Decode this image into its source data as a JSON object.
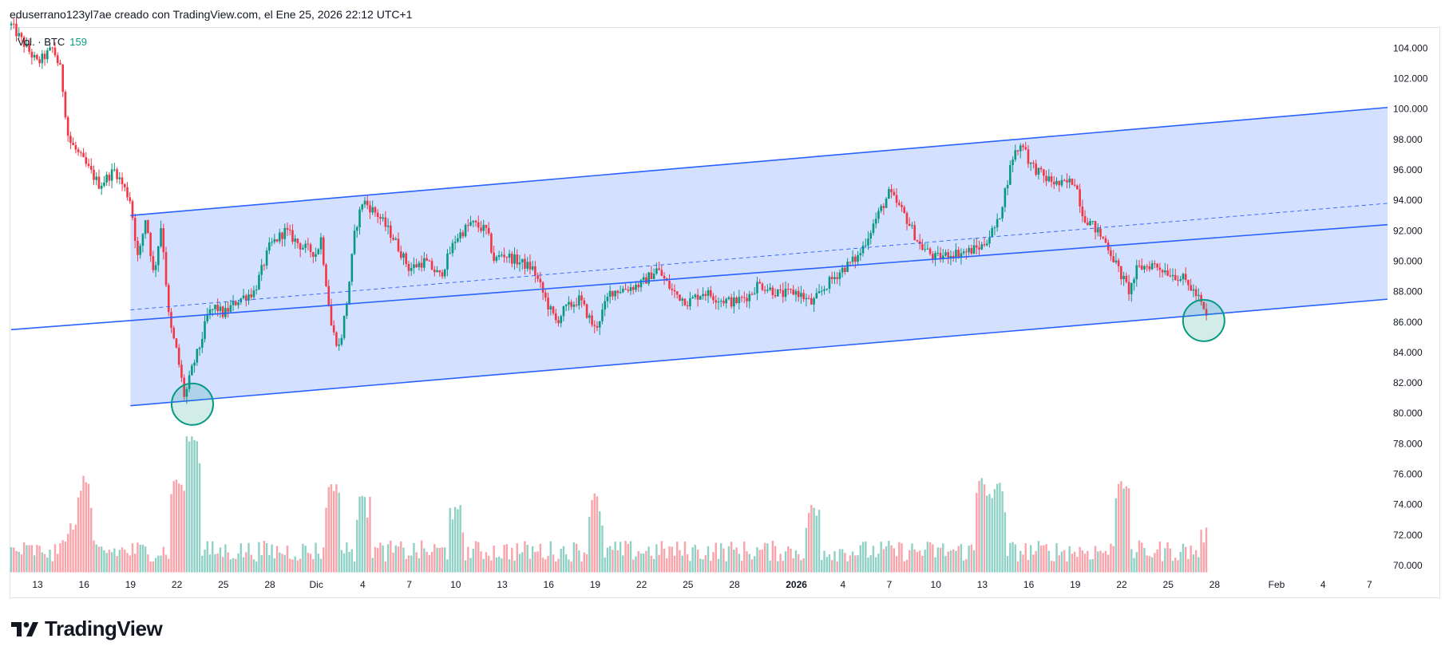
{
  "header": {
    "text": "eduserrano123yl7ae creado con TradingView.com, el Ene 25, 2026 22:12 UTC+1"
  },
  "legend": {
    "label": "Vol. · BTC",
    "value": "159"
  },
  "footer": {
    "logo_text": "TradingView"
  },
  "colors": {
    "up": "#089981",
    "down": "#f23645",
    "channel": "#2962ff",
    "channel_fill": "#2962ff",
    "circle": "#089981"
  },
  "chart_data": {
    "type": "candlestick",
    "price_range": [
      69000,
      105500
    ],
    "y_ticks": [
      70000,
      72000,
      74000,
      76000,
      78000,
      80000,
      82000,
      84000,
      86000,
      88000,
      90000,
      92000,
      94000,
      96000,
      98000,
      100000,
      102000,
      104000
    ],
    "y_tick_labels": [
      "70.000",
      "72.000",
      "74.000",
      "76.000",
      "78.000",
      "80.000",
      "82.000",
      "84.000",
      "86.000",
      "88.000",
      "90.000",
      "92.000",
      "94.000",
      "96.000",
      "98.000",
      "100.000",
      "102.000",
      "104.000"
    ],
    "x_tick_labels": [
      {
        "label": "13",
        "day": 0
      },
      {
        "label": "16",
        "day": 3
      },
      {
        "label": "19",
        "day": 6
      },
      {
        "label": "22",
        "day": 9
      },
      {
        "label": "25",
        "day": 12
      },
      {
        "label": "28",
        "day": 15
      },
      {
        "label": "Dic",
        "day": 18
      },
      {
        "label": "4",
        "day": 21
      },
      {
        "label": "7",
        "day": 24
      },
      {
        "label": "10",
        "day": 27
      },
      {
        "label": "13",
        "day": 30
      },
      {
        "label": "16",
        "day": 33
      },
      {
        "label": "19",
        "day": 36
      },
      {
        "label": "22",
        "day": 39
      },
      {
        "label": "25",
        "day": 42
      },
      {
        "label": "28",
        "day": 45
      },
      {
        "label": "2026",
        "day": 49
      },
      {
        "label": "4",
        "day": 52
      },
      {
        "label": "7",
        "day": 55
      },
      {
        "label": "10",
        "day": 58
      },
      {
        "label": "13",
        "day": 61
      },
      {
        "label": "16",
        "day": 64
      },
      {
        "label": "19",
        "day": 67
      },
      {
        "label": "22",
        "day": 70
      },
      {
        "label": "25",
        "day": 73
      },
      {
        "label": "28",
        "day": 76
      },
      {
        "label": "Feb",
        "day": 80
      },
      {
        "label": "4",
        "day": 83
      },
      {
        "label": "7",
        "day": 86
      }
    ],
    "price_path": [
      [
        -1.7,
        105500
      ],
      [
        0,
        103000
      ],
      [
        1,
        104000
      ],
      [
        1.5,
        102500
      ],
      [
        2,
        98000
      ],
      [
        3,
        96500
      ],
      [
        4,
        95000
      ],
      [
        5,
        96000
      ],
      [
        6,
        94000
      ],
      [
        6.5,
        90000
      ],
      [
        7,
        93000
      ],
      [
        7.5,
        89000
      ],
      [
        8,
        92500
      ],
      [
        8.5,
        86000
      ],
      [
        9,
        84000
      ],
      [
        9.5,
        81000
      ],
      [
        10,
        83000
      ],
      [
        10.5,
        84500
      ],
      [
        11,
        86500
      ],
      [
        11.5,
        87000
      ],
      [
        12,
        86500
      ],
      [
        13,
        87500
      ],
      [
        14,
        88000
      ],
      [
        15,
        91000
      ],
      [
        16,
        92000
      ],
      [
        17,
        91000
      ],
      [
        18,
        90500
      ],
      [
        18.3,
        91500
      ],
      [
        19,
        85500
      ],
      [
        19.5,
        84300
      ],
      [
        20,
        87500
      ],
      [
        20.5,
        92000
      ],
      [
        21,
        94000
      ],
      [
        22,
        93000
      ],
      [
        23,
        91500
      ],
      [
        24,
        89500
      ],
      [
        25,
        90000
      ],
      [
        26,
        89000
      ],
      [
        27,
        91500
      ],
      [
        28,
        92500
      ],
      [
        29,
        92000
      ],
      [
        29.5,
        90000
      ],
      [
        30,
        90500
      ],
      [
        31,
        90000
      ],
      [
        32,
        89500
      ],
      [
        33,
        87000
      ],
      [
        33.5,
        86000
      ],
      [
        34,
        86800
      ],
      [
        35,
        87500
      ],
      [
        36,
        85500
      ],
      [
        37,
        88000
      ],
      [
        38,
        88200
      ],
      [
        39,
        88500
      ],
      [
        40,
        89500
      ],
      [
        41,
        88000
      ],
      [
        42,
        87300
      ],
      [
        43,
        88000
      ],
      [
        44,
        87500
      ],
      [
        45,
        87300
      ],
      [
        46,
        87800
      ],
      [
        46.5,
        88500
      ],
      [
        47,
        88300
      ],
      [
        48,
        87800
      ],
      [
        49,
        88000
      ],
      [
        50,
        87200
      ],
      [
        51,
        88500
      ],
      [
        52,
        89500
      ],
      [
        53,
        90300
      ],
      [
        54,
        92500
      ],
      [
        55,
        94500
      ],
      [
        56,
        93000
      ],
      [
        57,
        91000
      ],
      [
        58,
        90200
      ],
      [
        59,
        90500
      ],
      [
        60,
        90600
      ],
      [
        61,
        91000
      ],
      [
        62,
        92500
      ],
      [
        63,
        97000
      ],
      [
        63.7,
        97800
      ],
      [
        64,
        96500
      ],
      [
        65,
        95500
      ],
      [
        66,
        95000
      ],
      [
        67,
        95300
      ],
      [
        67.5,
        93000
      ],
      [
        68,
        92500
      ],
      [
        69,
        91200
      ],
      [
        70,
        89000
      ],
      [
        70.5,
        88000
      ],
      [
        71,
        89500
      ],
      [
        72,
        89800
      ],
      [
        73,
        89300
      ],
      [
        74,
        88800
      ],
      [
        74.5,
        88200
      ],
      [
        75,
        87500
      ],
      [
        75.5,
        86200
      ]
    ],
    "volume_spikes": [
      [
        0.5,
        70900
      ],
      [
        2,
        72200
      ],
      [
        2.5,
        72800
      ],
      [
        3,
        75900
      ],
      [
        9,
        75800
      ],
      [
        10,
        78500
      ],
      [
        19,
        75400
      ],
      [
        21,
        74600
      ],
      [
        27,
        74000
      ],
      [
        36,
        74800
      ],
      [
        50,
        74100
      ],
      [
        61,
        75800
      ],
      [
        62,
        75500
      ],
      [
        70,
        75600
      ],
      [
        75.5,
        72500
      ]
    ],
    "channel": {
      "upper": [
        [
          6,
          93000
        ],
        [
          88,
          100100
        ]
      ],
      "lower": [
        [
          6,
          80500
        ],
        [
          88,
          87500
        ]
      ],
      "midline": [
        [
          6,
          86800
        ],
        [
          88,
          93800
        ]
      ]
    },
    "regression_line": [
      [
        -1.7,
        85500
      ],
      [
        88,
        92400
      ]
    ],
    "markers": [
      {
        "day": 10,
        "price": 80600,
        "label": "low-circle"
      },
      {
        "day": 75.3,
        "price": 86100,
        "label": "recent-circle"
      }
    ]
  }
}
